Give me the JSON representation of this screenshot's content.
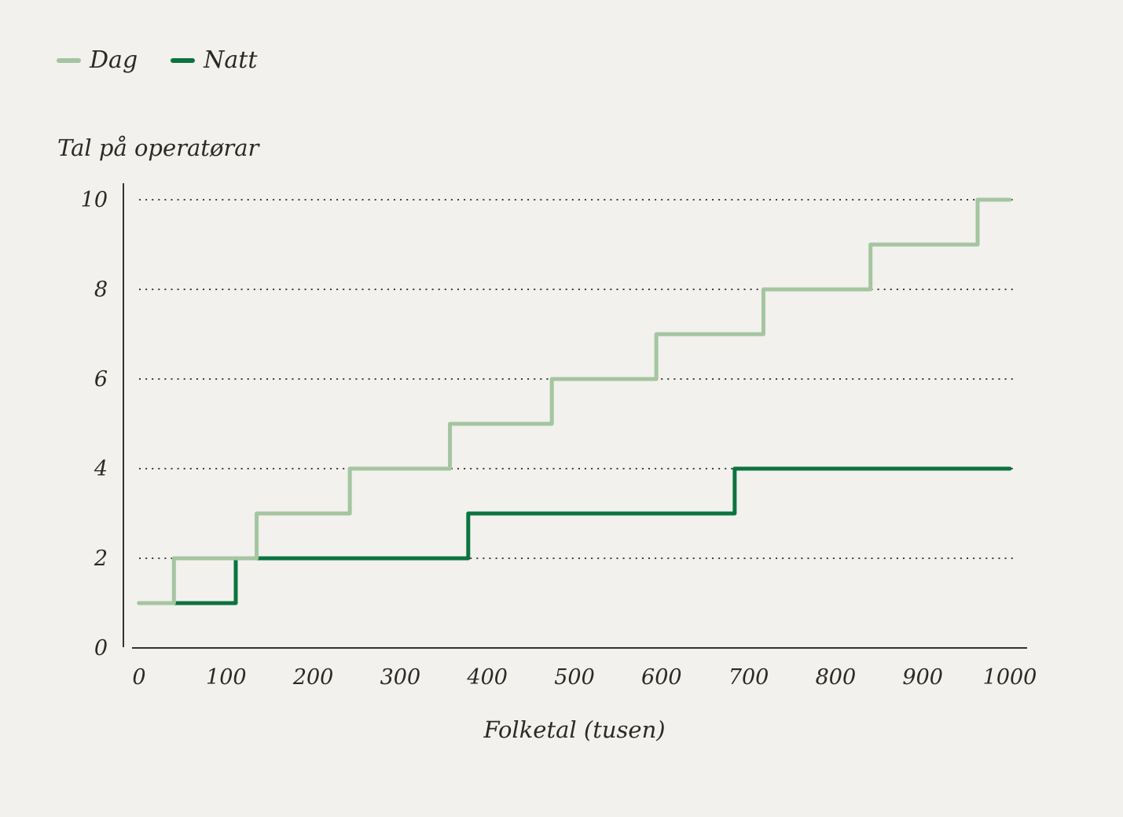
{
  "figure": {
    "background_color": "#f2f1ed",
    "text_color": "#2a2a25",
    "axis_color": "#34342f",
    "grid_color": "#3d3d38"
  },
  "chart_data": {
    "type": "line",
    "subtype": "step-after",
    "title": "",
    "ylabel": "Tal på operatørar",
    "xlabel": "Folketal (tusen)",
    "xlim": [
      0,
      1000
    ],
    "ylim": [
      0,
      10
    ],
    "x_ticks": [
      0,
      100,
      200,
      300,
      400,
      500,
      600,
      700,
      800,
      900,
      1000
    ],
    "y_ticks": [
      0,
      2,
      4,
      6,
      8,
      10
    ],
    "grid": "horizontal dotted lines at y = 2, 4, 6, 8, 10",
    "legend_position": "top-left",
    "series": [
      {
        "name": "Dag",
        "color": "#a4c5a0",
        "points": [
          {
            "x": 0,
            "y": 1
          },
          {
            "x": 40,
            "y": 2
          },
          {
            "x": 135,
            "y": 3
          },
          {
            "x": 242,
            "y": 4
          },
          {
            "x": 357,
            "y": 5
          },
          {
            "x": 474,
            "y": 6
          },
          {
            "x": 594,
            "y": 7
          },
          {
            "x": 717,
            "y": 8
          },
          {
            "x": 840,
            "y": 9
          },
          {
            "x": 963,
            "y": 10
          },
          {
            "x": 1000,
            "y": 10
          }
        ]
      },
      {
        "name": "Natt",
        "color": "#0c7340",
        "points": [
          {
            "x": 0,
            "y": 1
          },
          {
            "x": 111,
            "y": 2
          },
          {
            "x": 378,
            "y": 3
          },
          {
            "x": 684,
            "y": 4
          },
          {
            "x": 1000,
            "y": 4
          }
        ]
      }
    ]
  }
}
